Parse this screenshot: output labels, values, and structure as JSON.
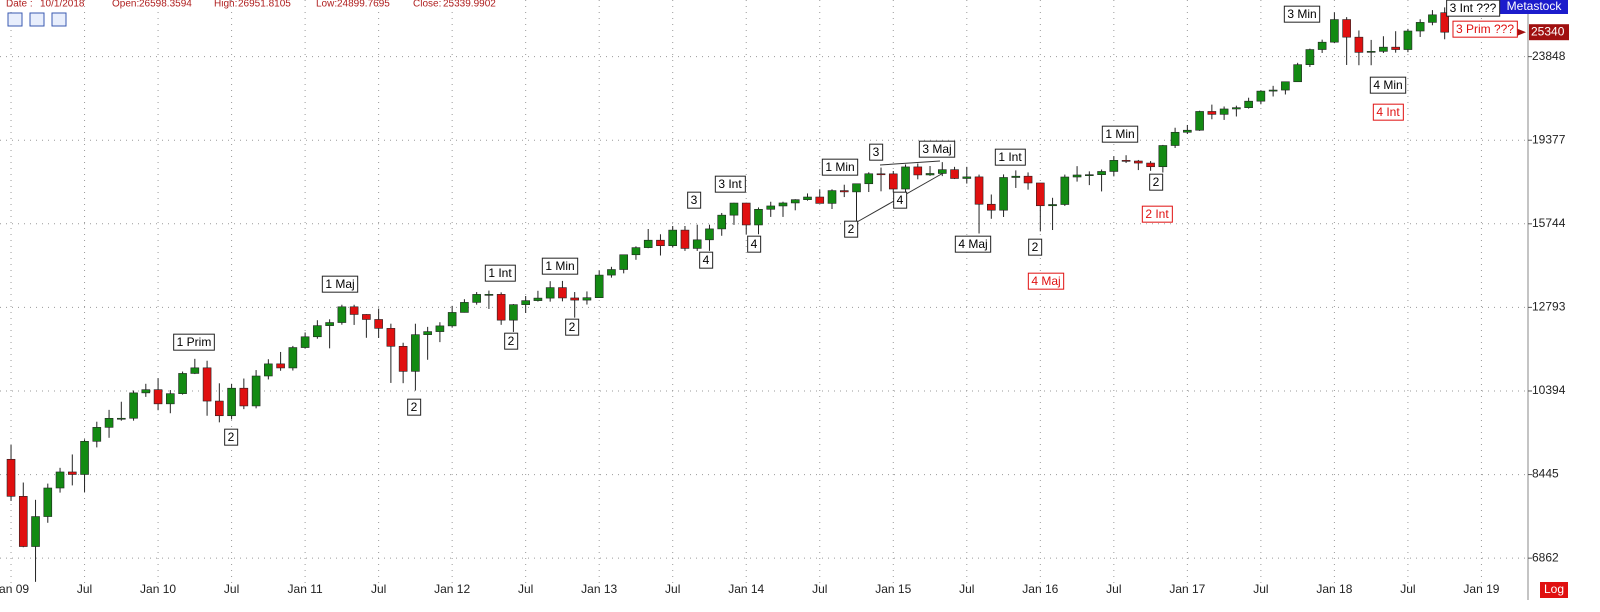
{
  "header": {
    "date_label": "Date :",
    "date": "10/1/2018",
    "open_label": "Open:",
    "high_label": "High:",
    "low_label": "Low:",
    "close_label": "Close:"
  },
  "branding": "Metastock",
  "scale_label": "Log",
  "chart_data": {
    "type": "candlestick",
    "log_scale": true,
    "grid": true,
    "up_color": "#138a13",
    "down_color": "#e01010",
    "xlim": [
      -0.9,
      123.8
    ],
    "ylim": [
      6340,
      27450
    ],
    "xticks": [
      {
        "value": 0,
        "label": "Jan 09"
      },
      {
        "value": 6,
        "label": "Jul"
      },
      {
        "value": 12,
        "label": "Jan 10"
      },
      {
        "value": 18,
        "label": "Jul"
      },
      {
        "value": 24,
        "label": "Jan 11"
      },
      {
        "value": 30,
        "label": "Jul"
      },
      {
        "value": 36,
        "label": "Jan 12"
      },
      {
        "value": 42,
        "label": "Jul"
      },
      {
        "value": 48,
        "label": "Jan 13"
      },
      {
        "value": 54,
        "label": "Jul"
      },
      {
        "value": 60,
        "label": "Jan 14"
      },
      {
        "value": 66,
        "label": "Jul"
      },
      {
        "value": 72,
        "label": "Jan 15"
      },
      {
        "value": 78,
        "label": "Jul"
      },
      {
        "value": 84,
        "label": "Jan 16"
      },
      {
        "value": 90,
        "label": "Jul"
      },
      {
        "value": 96,
        "label": "Jan 17"
      },
      {
        "value": 102,
        "label": "Jul"
      },
      {
        "value": 108,
        "label": "Jan 18"
      },
      {
        "value": 114,
        "label": "Jul"
      },
      {
        "value": 120,
        "label": "Jan 19"
      }
    ],
    "yticks": [
      6862,
      8445,
      10394,
      12793,
      15744,
      19377,
      23848
    ],
    "last_price_label": "25340",
    "open": [
      8772,
      8001,
      7063,
      7609,
      8168,
      8500,
      8447,
      9172,
      9496,
      9712,
      9713,
      10345,
      10428,
      10067,
      10325,
      10857,
      11009,
      10137,
      9774,
      10466,
      10015,
      10788,
      11118,
      11006,
      11578,
      11892,
      12226,
      12320,
      12811,
      12570,
      12414,
      12143,
      11614,
      10913,
      11955,
      12046,
      12218,
      12633,
      12952,
      13212,
      13214,
      12393,
      12880,
      13009,
      13091,
      13437,
      13096,
      13026,
      13104,
      13861,
      14054,
      14579,
      14840,
      15116,
      14910,
      15500,
      14810,
      15130,
      15546,
      16086,
      16577,
      15699,
      16322,
      16458,
      16581,
      16717,
      16827,
      16563,
      17098,
      17043,
      17391,
      17828,
      17823,
      17165,
      18133,
      17776,
      17841,
      18011,
      17620,
      17690,
      16528,
      16285,
      17664,
      17720,
      17425,
      16466,
      16517,
      17685,
      17774,
      17787,
      17930,
      18432,
      18401,
      18308,
      18142,
      19124,
      19763,
      19864,
      20812,
      20663,
      20941,
      21009,
      21350,
      21891,
      21948,
      22405,
      23377,
      24272,
      24719,
      26149,
      25029,
      24103,
      24163,
      24416,
      24271,
      25415,
      25965,
      26598.3594
    ],
    "high": [
      9088,
      8280,
      7932,
      8258,
      8588,
      8878,
      9218,
      9630,
      9918,
      10120,
      10406,
      10581,
      10730,
      10418,
      10908,
      11258,
      11205,
      10594,
      10581,
      10720,
      10948,
      11247,
      11452,
      11625,
      12020,
      12391,
      12419,
      12877,
      12876,
      12580,
      12753,
      12285,
      11717,
      12284,
      12188,
      12330,
      12841,
      13055,
      13289,
      13338,
      13279,
      12899,
      13160,
      13331,
      13653,
      13662,
      13290,
      13310,
      14019,
      14149,
      14585,
      14888,
      15542,
      15340,
      15658,
      15659,
      15709,
      15710,
      16174,
      16588,
      16588,
      16398,
      16631,
      16632,
      16736,
      16978,
      17152,
      17153,
      17350,
      17395,
      17895,
      18103,
      17951,
      18244,
      18288,
      18175,
      18351,
      18137,
      18137,
      17791,
      16933,
      17800,
      17978,
      17888,
      17406,
      16795,
      17791,
      18168,
      17935,
      18017,
      18623,
      18668,
      18450,
      18399,
      19152,
      19987,
      20125,
      20851,
      21169,
      21071,
      21113,
      21535,
      21930,
      22179,
      22420,
      23485,
      24328,
      24877,
      26617,
      26307,
      25450,
      24859,
      25087,
      25403,
      25552,
      26168,
      26770,
      26951.8105
    ],
    "low": [
      7909,
      7050,
      6470,
      7492,
      8075,
      8221,
      8088,
      9035,
      9253,
      9654,
      9655,
      10243,
      9908,
      9835,
      10301,
      10840,
      9774,
      9615,
      9686,
      9936,
      9955,
      10696,
      10929,
      10935,
      11555,
      11834,
      11555,
      12254,
      12247,
      11862,
      11856,
      10604,
      10597,
      10404,
      11232,
      11735,
      12165,
      12630,
      12880,
      12743,
      12250,
      12036,
      12616,
      12979,
      12976,
      12986,
      12471,
      12883,
      13104,
      13773,
      13921,
      14398,
      14818,
      14552,
      14843,
      14720,
      14719,
      14720,
      15283,
      15703,
      15340,
      15341,
      16016,
      16015,
      16281,
      16676,
      16564,
      16334,
      16825,
      15855,
      17037,
      17067,
      17037,
      17038,
      17585,
      17733,
      17724,
      17596,
      17400,
      15370,
      15942,
      16013,
      17211,
      17138,
      15450,
      15503,
      16459,
      17484,
      17332,
      17063,
      17712,
      18311,
      17992,
      17959,
      17883,
      19006,
      19677,
      19832,
      20412,
      20379,
      20554,
      20959,
      21185,
      21600,
      21709,
      22416,
      23242,
      24067,
      24660,
      23360,
      23344,
      23344,
      24064,
      24084,
      24112,
      25042,
      25781,
      24899.7695
    ],
    "close": [
      8001,
      7063,
      7609,
      8168,
      8500,
      8447,
      9172,
      9496,
      9712,
      9713,
      10345,
      10428,
      10067,
      10325,
      10857,
      11009,
      10137,
      9774,
      10466,
      10015,
      10788,
      11118,
      11006,
      11578,
      11892,
      12226,
      12320,
      12811,
      12570,
      12414,
      12143,
      11614,
      10913,
      11955,
      12046,
      12218,
      12633,
      12952,
      13212,
      13214,
      12393,
      12880,
      13009,
      13091,
      13437,
      13096,
      13026,
      13104,
      13861,
      14054,
      14579,
      14840,
      15116,
      14910,
      15500,
      14810,
      15130,
      15546,
      16086,
      16577,
      15699,
      16322,
      16458,
      16581,
      16717,
      16827,
      16563,
      17098,
      17043,
      17391,
      17828,
      17823,
      17165,
      18133,
      17776,
      17841,
      18011,
      17620,
      17690,
      16528,
      16285,
      17664,
      17720,
      17425,
      16466,
      16517,
      17685,
      17774,
      17787,
      17930,
      18432,
      18401,
      18308,
      18142,
      19124,
      19763,
      19864,
      20812,
      20663,
      20941,
      21009,
      21350,
      21891,
      21948,
      22405,
      23377,
      24272,
      24719,
      26149,
      25029,
      24103,
      24163,
      24416,
      24271,
      25415,
      25965,
      26458,
      25339.9902
    ],
    "annotations": [
      {
        "text": "1 Prim",
        "color": "#000000"
      },
      {
        "text": "2",
        "color": "#000000"
      },
      {
        "text": "1 Maj",
        "color": "#000000"
      },
      {
        "text": "2",
        "color": "#000000"
      },
      {
        "text": "1 Int",
        "color": "#000000"
      },
      {
        "text": "2",
        "color": "#000000"
      },
      {
        "text": "1 Min",
        "color": "#000000"
      },
      {
        "text": "2",
        "color": "#000000"
      },
      {
        "text": "3",
        "color": "#000000"
      },
      {
        "text": "4",
        "color": "#000000"
      },
      {
        "text": "3 Int",
        "color": "#000000"
      },
      {
        "text": "4",
        "color": "#000000"
      },
      {
        "text": "1 Min",
        "color": "#000000"
      },
      {
        "text": "2",
        "color": "#000000"
      },
      {
        "text": "3",
        "color": "#000000"
      },
      {
        "text": "4",
        "color": "#000000"
      },
      {
        "text": "3 Maj",
        "color": "#000000"
      },
      {
        "text": "4 Maj",
        "color": "#000000"
      },
      {
        "text": "1 Int",
        "color": "#000000"
      },
      {
        "text": "2",
        "color": "#000000"
      },
      {
        "text": "4 Maj",
        "color": "#e01010"
      },
      {
        "text": "1 Min",
        "color": "#000000"
      },
      {
        "text": "2",
        "color": "#000000"
      },
      {
        "text": "2 Int",
        "color": "#e01010"
      },
      {
        "text": "3 Min",
        "color": "#000000"
      },
      {
        "text": "4 Min",
        "color": "#000000"
      },
      {
        "text": "4 Int",
        "color": "#e01010"
      },
      {
        "text": "3 Int ???",
        "color": "#000000"
      },
      {
        "text": "3 Prim ???",
        "color": "#e01010"
      }
    ]
  }
}
